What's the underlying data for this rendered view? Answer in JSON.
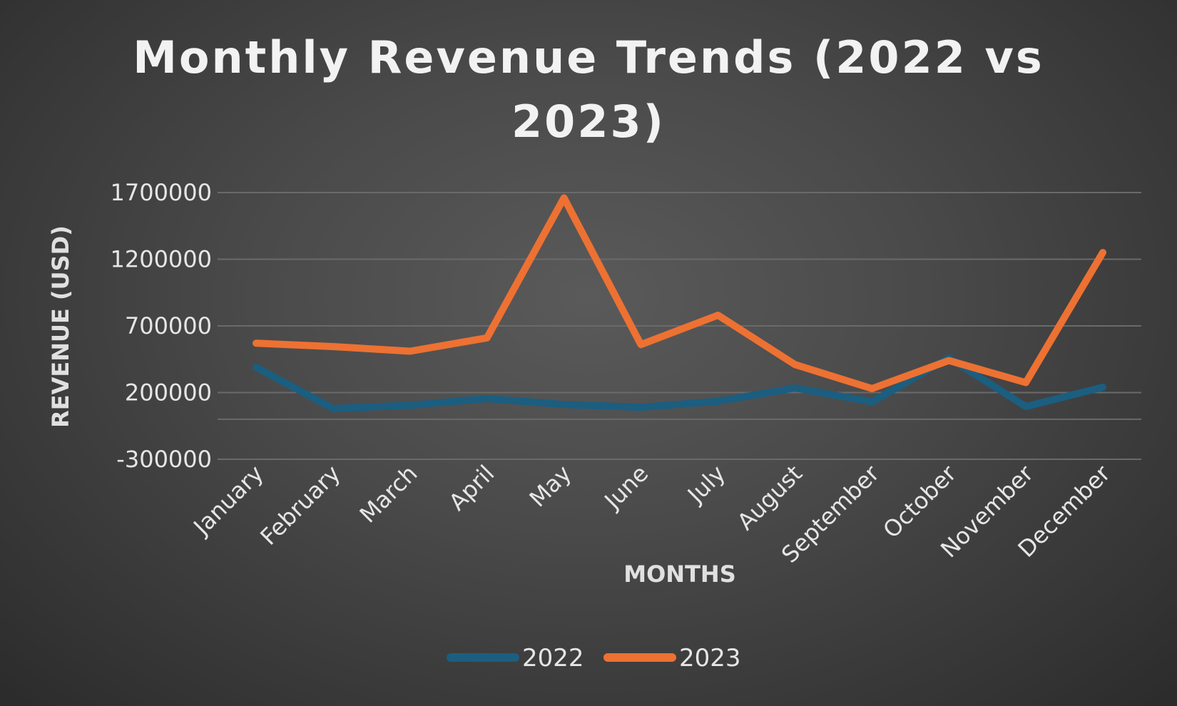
{
  "chart_data": {
    "type": "line",
    "title_lines": [
      "Monthly Revenue Trends (2022 vs",
      "2023)"
    ],
    "xlabel": "MONTHS",
    "ylabel": "REVENUE (USD)",
    "categories": [
      "January",
      "February",
      "March",
      "April",
      "May",
      "June",
      "July",
      "August",
      "September",
      "October",
      "November",
      "December"
    ],
    "yticks": [
      -300000,
      200000,
      700000,
      1200000,
      1700000
    ],
    "ylim": [
      -300000,
      1700000
    ],
    "extra_gridline": 0,
    "grid": true,
    "legend_position": "bottom",
    "series": [
      {
        "name": "2022",
        "color": "#1b5e80",
        "values": [
          390000,
          80000,
          105000,
          155000,
          110000,
          90000,
          135000,
          235000,
          130000,
          460000,
          95000,
          240000
        ]
      },
      {
        "name": "2023",
        "color": "#ed7132",
        "values": [
          570000,
          545000,
          510000,
          610000,
          1660000,
          560000,
          780000,
          410000,
          230000,
          440000,
          275000,
          1250000
        ]
      }
    ]
  }
}
